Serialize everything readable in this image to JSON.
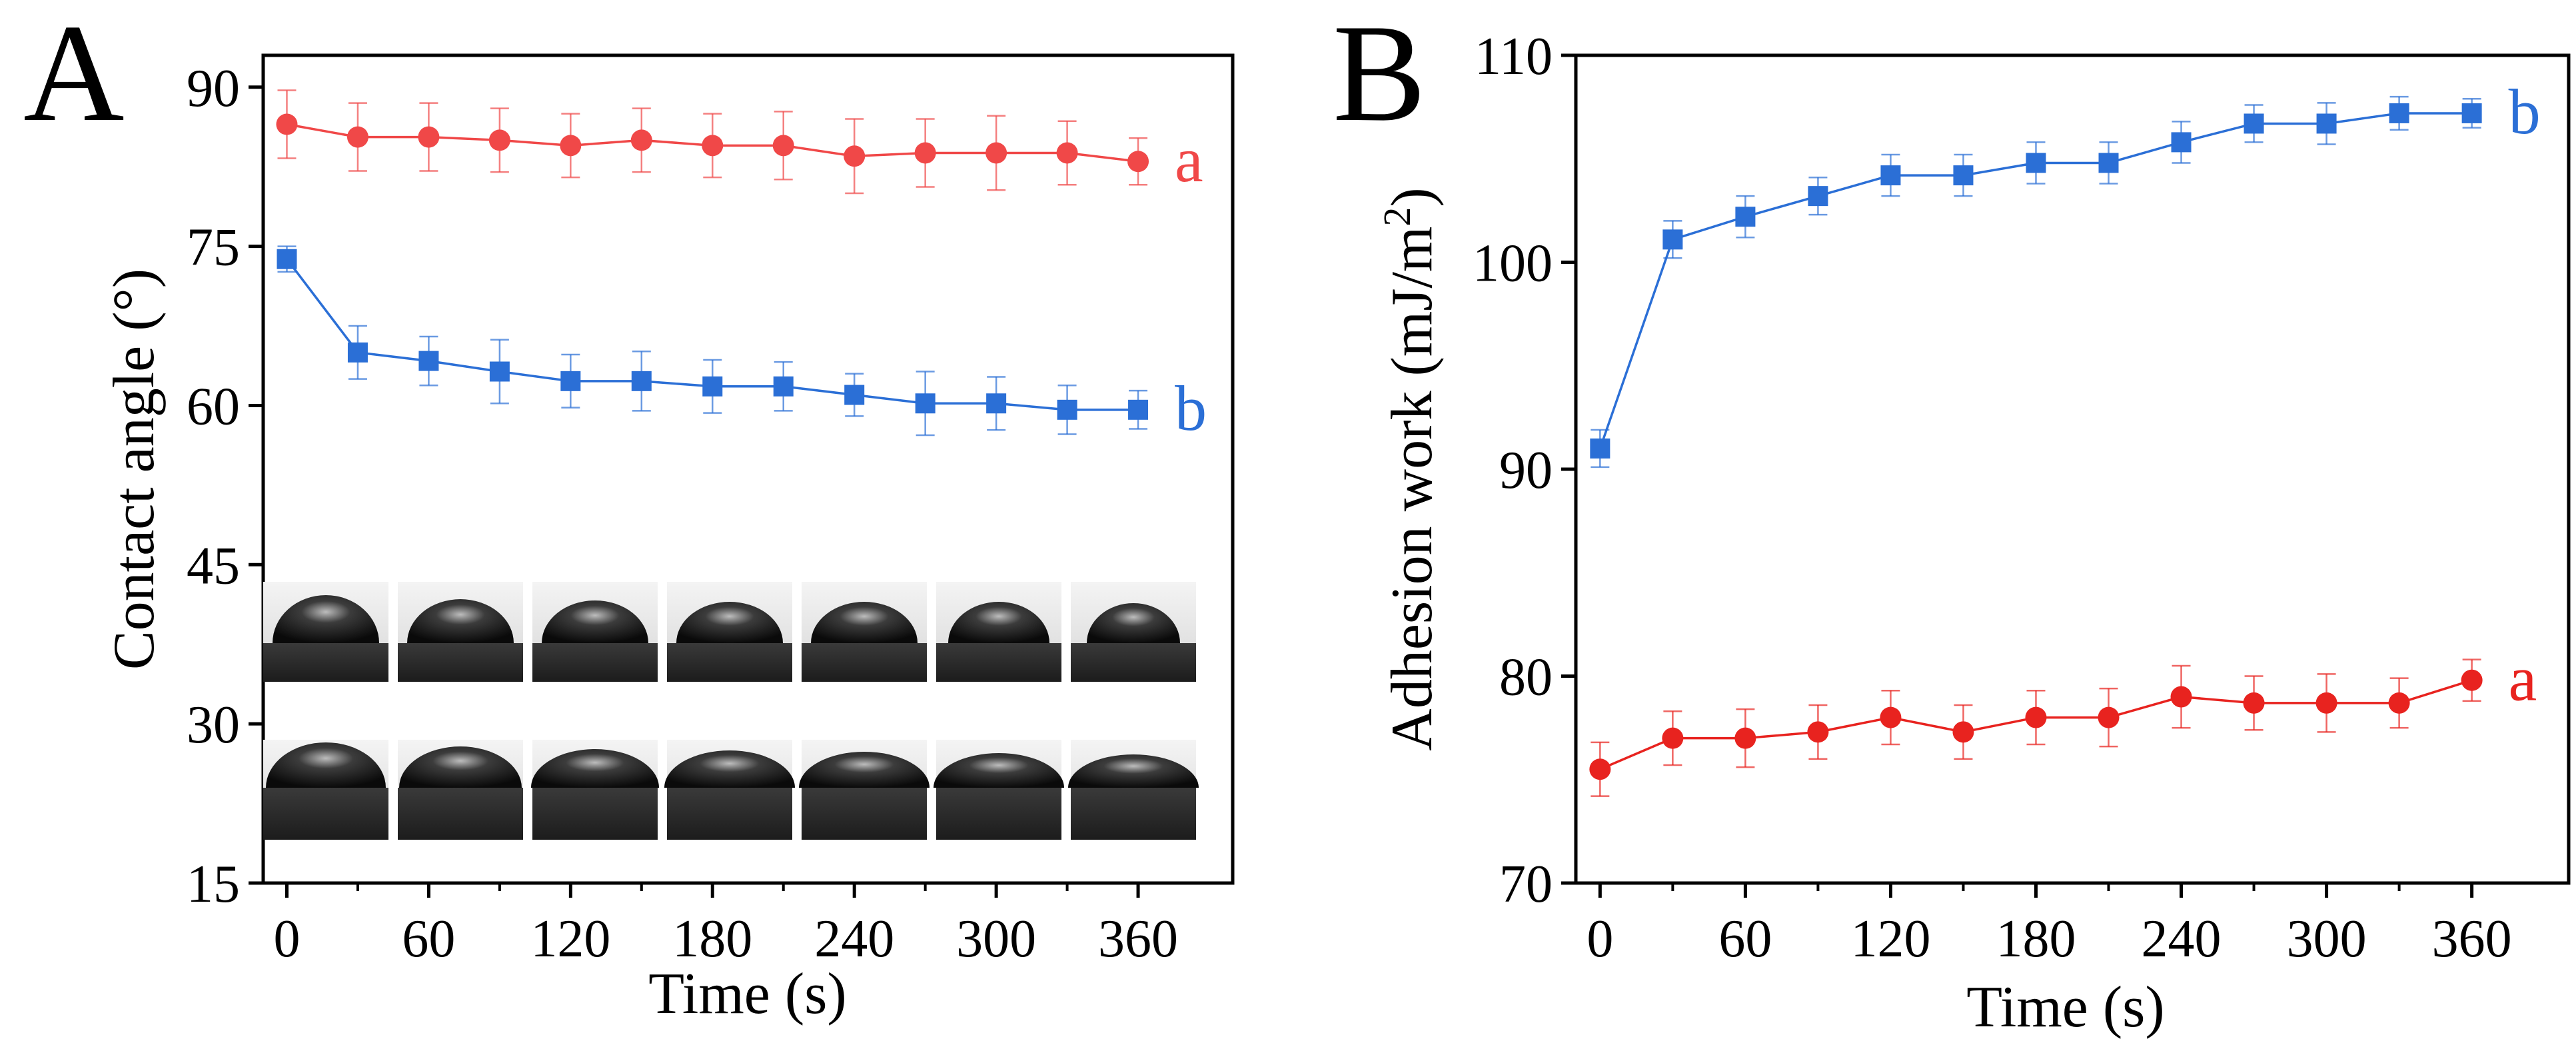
{
  "panels": [
    {
      "panel_label": "A",
      "chart_data": {
        "type": "line",
        "xlabel": "Time (s)",
        "ylabel": "Contact angle (°)",
        "x_ticks": [
          "0",
          "60",
          "120",
          "180",
          "240",
          "300",
          "360"
        ],
        "y_ticks": [
          "15",
          "30",
          "45",
          "60",
          "75",
          "90"
        ],
        "xlim": [
          -10,
          400
        ],
        "ylim": [
          15,
          93
        ],
        "x": [
          0,
          30,
          60,
          90,
          120,
          150,
          180,
          210,
          240,
          270,
          300,
          330,
          360
        ],
        "series": [
          {
            "name": "a",
            "color": "#f04848",
            "marker": "circle",
            "values": [
              86.5,
              85.3,
              85.3,
              85.0,
              84.5,
              85.0,
              84.5,
              84.5,
              83.5,
              83.8,
              83.8,
              83.8,
              83.0
            ],
            "errors": [
              3.2,
              3.2,
              3.2,
              3.0,
              3.0,
              3.0,
              3.0,
              3.2,
              3.5,
              3.2,
              3.5,
              3.0,
              2.2
            ]
          },
          {
            "name": "b",
            "color": "#2b6fd6",
            "marker": "square",
            "values": [
              73.8,
              65.0,
              64.2,
              63.2,
              62.3,
              62.3,
              61.8,
              61.8,
              61.0,
              60.2,
              60.2,
              59.6,
              59.6
            ],
            "errors": [
              1.2,
              2.5,
              2.3,
              3.0,
              2.5,
              2.8,
              2.5,
              2.3,
              2.0,
              3.0,
              2.5,
              2.3,
              1.8
            ]
          }
        ],
        "inset": "droplet photographs, two rows of seven"
      }
    },
    {
      "panel_label": "B",
      "chart_data": {
        "type": "line",
        "xlabel": "Time (s)",
        "ylabel_main": "Adhesion work (mJ/m",
        "ylabel_sup": "2",
        "ylabel_close": ")",
        "x_ticks": [
          "0",
          "60",
          "120",
          "180",
          "240",
          "300",
          "360"
        ],
        "y_ticks": [
          "70",
          "80",
          "90",
          "100",
          "110"
        ],
        "xlim": [
          -10,
          400
        ],
        "ylim": [
          70,
          110
        ],
        "x": [
          0,
          30,
          60,
          90,
          120,
          150,
          180,
          210,
          240,
          270,
          300,
          330,
          360
        ],
        "series": [
          {
            "name": "b",
            "color": "#2b6fd6",
            "marker": "square",
            "values": [
              91.0,
              101.1,
              102.2,
              103.2,
              104.2,
              104.2,
              104.8,
              104.8,
              105.8,
              106.7,
              106.7,
              107.2,
              107.2
            ],
            "errors": [
              0.9,
              0.9,
              1.0,
              0.9,
              1.0,
              1.0,
              1.0,
              1.0,
              1.0,
              0.9,
              1.0,
              0.8,
              0.7
            ]
          },
          {
            "name": "a",
            "color": "#e8231f",
            "marker": "circle",
            "values": [
              75.5,
              77.0,
              77.0,
              77.3,
              78.0,
              77.3,
              78.0,
              78.0,
              79.0,
              78.7,
              78.7,
              78.7,
              79.8
            ],
            "errors": [
              1.3,
              1.3,
              1.4,
              1.3,
              1.3,
              1.3,
              1.3,
              1.4,
              1.5,
              1.3,
              1.4,
              1.2,
              1.0
            ]
          }
        ]
      }
    }
  ]
}
